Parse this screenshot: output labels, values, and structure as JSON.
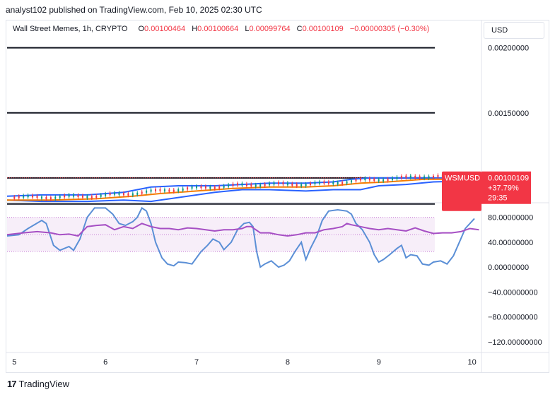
{
  "header": {
    "published": "analyst102 published on TradingView.com, Feb 10, 2025 02:30 UTC"
  },
  "legend": {
    "symbol": "Wall Street Memes, 1h, CRYPTO",
    "o_label": "O",
    "o": "0.00100464",
    "h_label": "H",
    "h": "0.00100664",
    "l_label": "L",
    "l": "0.00099764",
    "c_label": "C",
    "c": "0.00100109",
    "change": "−0.00000305 (−0.30%)"
  },
  "currency_button": "USD",
  "price_tag": {
    "symbol": "WSMUSD",
    "price": "0.00100109",
    "change": "+37.79%",
    "countdown": "29:35",
    "color": "#f23645"
  },
  "logo": {
    "mark": "17",
    "text": "TradingView"
  },
  "colors": {
    "bb": "#2962ff",
    "ma": "#f57c00",
    "stoch_k": "#5b8fd6",
    "rsi": "#a64fc4",
    "up": "#089981",
    "down": "#f23645"
  },
  "chart_data": [
    {
      "type": "candlestick",
      "ylim": [
        0.00075,
        0.00215
      ],
      "y_ticks": [
        "0.00200000",
        "0.00150000"
      ],
      "y_tick_values": [
        0.002,
        0.0015
      ],
      "x_ticks": [
        "5",
        "6",
        "7",
        "8",
        "9",
        "10"
      ],
      "x_tick_values": [
        5,
        6,
        7,
        8,
        9,
        10
      ],
      "x_range": [
        4.92,
        10.12
      ],
      "horizontal_levels": [
        0.002,
        0.0015,
        0.001,
        0.0008
      ],
      "last_price": 0.00100109,
      "bb_upper": [
        [
          4.92,
          0.00086
        ],
        [
          5.3,
          0.00087
        ],
        [
          5.8,
          0.00087
        ],
        [
          6.2,
          0.00089
        ],
        [
          6.5,
          0.00093
        ],
        [
          6.8,
          0.00094
        ],
        [
          7.2,
          0.00094
        ],
        [
          7.5,
          0.00095
        ],
        [
          7.8,
          0.00096
        ],
        [
          8.2,
          0.00096
        ],
        [
          8.5,
          0.00097
        ],
        [
          8.7,
          0.00099
        ],
        [
          8.9,
          0.001
        ],
        [
          9.3,
          0.001
        ],
        [
          9.7,
          0.001
        ],
        [
          10.1,
          0.001
        ]
      ],
      "bb_lower": [
        [
          4.92,
          0.00083
        ],
        [
          5.3,
          0.00082
        ],
        [
          5.8,
          0.00082
        ],
        [
          6.2,
          0.00083
        ],
        [
          6.5,
          0.00082
        ],
        [
          6.8,
          0.00085
        ],
        [
          7.2,
          0.00089
        ],
        [
          7.5,
          0.00091
        ],
        [
          7.8,
          0.00091
        ],
        [
          8.2,
          0.0009
        ],
        [
          8.5,
          0.00091
        ],
        [
          8.8,
          0.00091
        ],
        [
          9.0,
          0.00094
        ],
        [
          9.3,
          0.00095
        ],
        [
          9.6,
          0.00097
        ],
        [
          10.1,
          0.00098
        ]
      ],
      "ma": [
        [
          4.92,
          0.00083
        ],
        [
          5.4,
          0.00083
        ],
        [
          5.9,
          0.00084
        ],
        [
          6.3,
          0.00086
        ],
        [
          6.6,
          0.00088
        ],
        [
          7.0,
          0.0009
        ],
        [
          7.4,
          0.00092
        ],
        [
          7.8,
          0.00093
        ],
        [
          8.2,
          0.00093
        ],
        [
          8.5,
          0.00094
        ],
        [
          8.8,
          0.00096
        ],
        [
          9.1,
          0.00097
        ],
        [
          9.5,
          0.00099
        ],
        [
          10.1,
          0.00099
        ]
      ]
    },
    {
      "type": "line",
      "ylim": [
        -135,
        100
      ],
      "y_ticks": [
        "80.00000000",
        "40.00000000",
        "0.00000000",
        "−40.00000000",
        "−80.00000000",
        "−120.00000000"
      ],
      "y_tick_values": [
        80,
        40,
        0,
        -40,
        -80,
        -120
      ],
      "band": [
        25,
        80
      ],
      "band_lines": [
        25,
        52,
        80
      ],
      "series": [
        {
          "values": [
            [
              4.92,
              50
            ],
            [
              5.05,
              52
            ],
            [
              5.15,
              62
            ],
            [
              5.3,
              75
            ],
            [
              5.35,
              70
            ],
            [
              5.43,
              35
            ],
            [
              5.5,
              27
            ],
            [
              5.6,
              33
            ],
            [
              5.65,
              27
            ],
            [
              5.72,
              45
            ],
            [
              5.8,
              80
            ],
            [
              5.88,
              95
            ],
            [
              6.0,
              95
            ],
            [
              6.08,
              85
            ],
            [
              6.15,
              70
            ],
            [
              6.22,
              67
            ],
            [
              6.3,
              73
            ],
            [
              6.35,
              80
            ],
            [
              6.4,
              95
            ],
            [
              6.45,
              90
            ],
            [
              6.5,
              70
            ],
            [
              6.55,
              40
            ],
            [
              6.62,
              15
            ],
            [
              6.68,
              5
            ],
            [
              6.75,
              2
            ],
            [
              6.8,
              8
            ],
            [
              6.88,
              7
            ],
            [
              6.95,
              5
            ],
            [
              7.0,
              15
            ],
            [
              7.05,
              25
            ],
            [
              7.12,
              35
            ],
            [
              7.18,
              45
            ],
            [
              7.25,
              40
            ],
            [
              7.3,
              28
            ],
            [
              7.38,
              40
            ],
            [
              7.45,
              60
            ],
            [
              7.52,
              70
            ],
            [
              7.58,
              72
            ],
            [
              7.62,
              65
            ],
            [
              7.66,
              25
            ],
            [
              7.7,
              0
            ],
            [
              7.75,
              5
            ],
            [
              7.82,
              10
            ],
            [
              7.9,
              0
            ],
            [
              7.96,
              3
            ],
            [
              8.02,
              10
            ],
            [
              8.08,
              25
            ],
            [
              8.15,
              40
            ],
            [
              8.2,
              12
            ],
            [
              8.25,
              30
            ],
            [
              8.32,
              50
            ],
            [
              8.38,
              75
            ],
            [
              8.45,
              90
            ],
            [
              8.55,
              92
            ],
            [
              8.65,
              90
            ],
            [
              8.7,
              85
            ],
            [
              8.75,
              70
            ],
            [
              8.82,
              60
            ],
            [
              8.9,
              40
            ],
            [
              8.95,
              20
            ],
            [
              9.0,
              8
            ],
            [
              9.05,
              12
            ],
            [
              9.12,
              20
            ],
            [
              9.2,
              30
            ],
            [
              9.25,
              35
            ],
            [
              9.3,
              15
            ],
            [
              9.35,
              20
            ],
            [
              9.42,
              18
            ],
            [
              9.48,
              5
            ],
            [
              9.55,
              3
            ],
            [
              9.6,
              8
            ],
            [
              9.68,
              10
            ],
            [
              9.75,
              5
            ],
            [
              9.82,
              18
            ],
            [
              9.9,
              45
            ],
            [
              9.95,
              62
            ],
            [
              10.05,
              78
            ]
          ]
        },
        {
          "values": [
            [
              4.92,
              52
            ],
            [
              5.1,
              55
            ],
            [
              5.25,
              57
            ],
            [
              5.4,
              55
            ],
            [
              5.5,
              52
            ],
            [
              5.6,
              53
            ],
            [
              5.7,
              50
            ],
            [
              5.8,
              65
            ],
            [
              5.9,
              67
            ],
            [
              6.0,
              68
            ],
            [
              6.1,
              60
            ],
            [
              6.2,
              65
            ],
            [
              6.3,
              62
            ],
            [
              6.4,
              70
            ],
            [
              6.5,
              65
            ],
            [
              6.6,
              62
            ],
            [
              6.7,
              62
            ],
            [
              6.8,
              60
            ],
            [
              6.9,
              63
            ],
            [
              7.0,
              62
            ],
            [
              7.1,
              60
            ],
            [
              7.2,
              58
            ],
            [
              7.3,
              60
            ],
            [
              7.4,
              60
            ],
            [
              7.5,
              62
            ],
            [
              7.55,
              65
            ],
            [
              7.6,
              65
            ],
            [
              7.7,
              55
            ],
            [
              7.8,
              55
            ],
            [
              7.9,
              52
            ],
            [
              8.0,
              50
            ],
            [
              8.1,
              52
            ],
            [
              8.2,
              55
            ],
            [
              8.3,
              55
            ],
            [
              8.4,
              60
            ],
            [
              8.5,
              62
            ],
            [
              8.6,
              65
            ],
            [
              8.65,
              70
            ],
            [
              8.7,
              68
            ],
            [
              8.8,
              65
            ],
            [
              8.9,
              62
            ],
            [
              9.0,
              60
            ],
            [
              9.1,
              62
            ],
            [
              9.2,
              60
            ],
            [
              9.3,
              58
            ],
            [
              9.4,
              63
            ],
            [
              9.5,
              58
            ],
            [
              9.6,
              54
            ],
            [
              9.7,
              55
            ],
            [
              9.8,
              55
            ],
            [
              9.9,
              57
            ],
            [
              10.0,
              62
            ],
            [
              10.1,
              60
            ]
          ]
        }
      ]
    }
  ]
}
